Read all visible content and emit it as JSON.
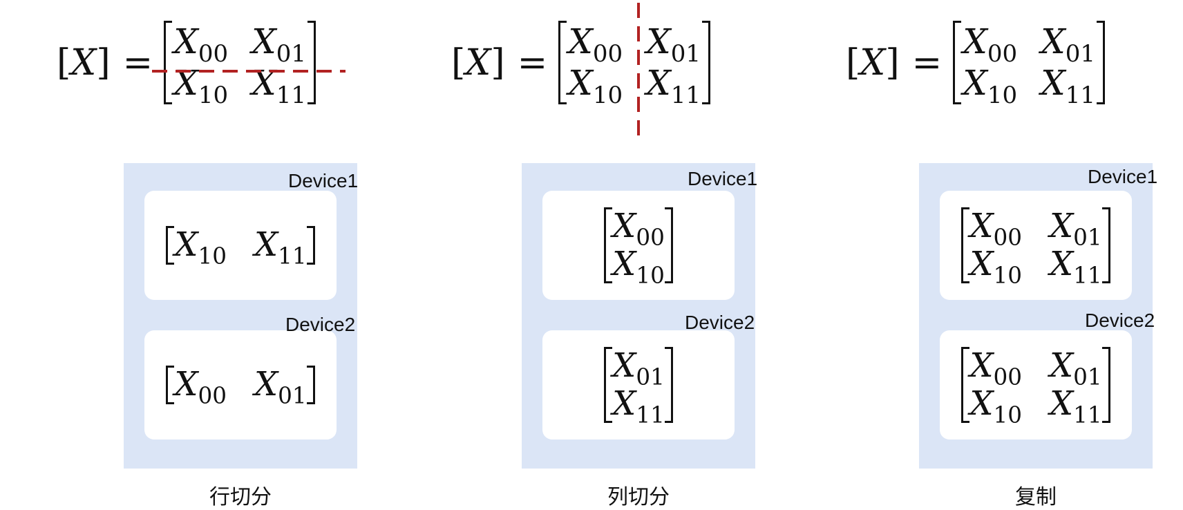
{
  "equation_lhs": "X",
  "equals": "=",
  "matrix_full": [
    [
      "X",
      "00"
    ],
    [
      "X",
      "01"
    ],
    [
      "X",
      "10"
    ],
    [
      "X",
      "11"
    ]
  ],
  "split_line_color": "#b22222",
  "container_color": "#dbe5f6",
  "panels": [
    {
      "caption": "行切分",
      "split": "row",
      "device1": {
        "label": "Device1",
        "cells": [
          [
            "X",
            "10"
          ],
          [
            "X",
            "11"
          ]
        ],
        "cols": 2
      },
      "device2": {
        "label": "Device2",
        "cells": [
          [
            "X",
            "00"
          ],
          [
            "X",
            "01"
          ]
        ],
        "cols": 2
      }
    },
    {
      "caption": "列切分",
      "split": "column",
      "device1": {
        "label": "Device1",
        "cells": [
          [
            "X",
            "00"
          ],
          [
            "X",
            "10"
          ]
        ],
        "cols": 1
      },
      "device2": {
        "label": "Device2",
        "cells": [
          [
            "X",
            "01"
          ],
          [
            "X",
            "11"
          ]
        ],
        "cols": 1
      }
    },
    {
      "caption": "复制",
      "split": "none",
      "device1": {
        "label": "Device1",
        "cells": [
          [
            "X",
            "00"
          ],
          [
            "X",
            "01"
          ],
          [
            "X",
            "10"
          ],
          [
            "X",
            "11"
          ]
        ],
        "cols": 2
      },
      "device2": {
        "label": "Device2",
        "cells": [
          [
            "X",
            "00"
          ],
          [
            "X",
            "01"
          ],
          [
            "X",
            "10"
          ],
          [
            "X",
            "11"
          ]
        ],
        "cols": 2
      }
    }
  ]
}
